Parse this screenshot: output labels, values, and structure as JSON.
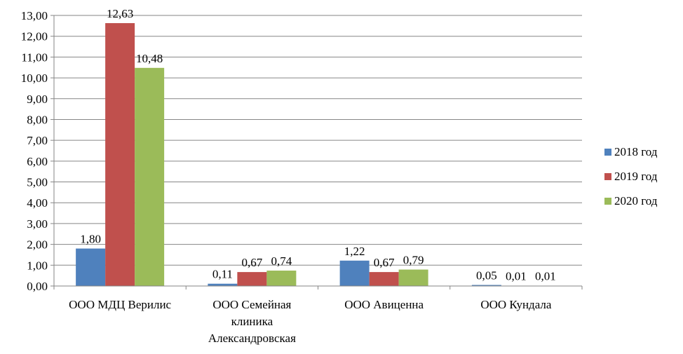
{
  "chart_data": {
    "type": "bar",
    "categories": [
      [
        "ООО МДЦ Верилис"
      ],
      [
        "ООО Семейная",
        "клиника",
        "Александровская"
      ],
      [
        "ООО Авиценна"
      ],
      [
        "ООО Кундала"
      ]
    ],
    "series": [
      {
        "name": "2018 год",
        "color": "#4F81BD",
        "values": [
          1.8,
          0.11,
          1.22,
          0.05
        ],
        "labels": [
          "1,80",
          "0,11",
          "1,22",
          "0,05"
        ]
      },
      {
        "name": "2019 год",
        "color": "#C0504D",
        "values": [
          12.63,
          0.67,
          0.67,
          0.01
        ],
        "labels": [
          "12,63",
          "0,67",
          "0,67",
          "0,01"
        ]
      },
      {
        "name": "2020 год",
        "color": "#9BBB59",
        "values": [
          10.48,
          0.74,
          0.79,
          0.01
        ],
        "labels": [
          "10,48",
          "0,74",
          "0,79",
          "0,01"
        ]
      }
    ],
    "ylim": [
      0,
      13
    ],
    "yticks": [
      "0,00",
      "1,00",
      "2,00",
      "3,00",
      "4,00",
      "5,00",
      "6,00",
      "7,00",
      "8,00",
      "9,00",
      "10,00",
      "11,00",
      "12,00",
      "13,00"
    ],
    "grid": true,
    "legend_position": "right"
  }
}
